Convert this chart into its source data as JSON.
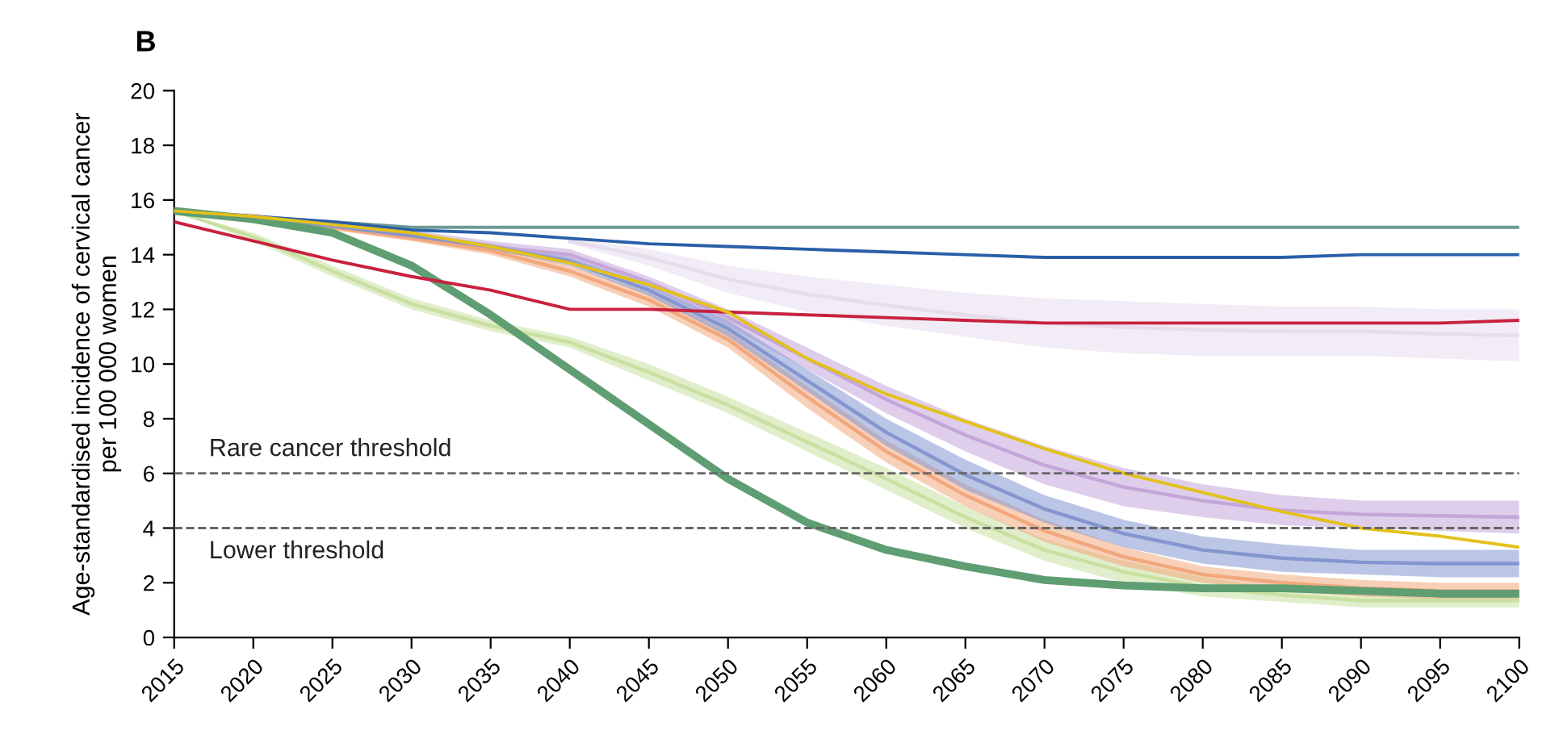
{
  "chart_data": {
    "type": "line",
    "title": "B",
    "ylabel": "Age-standardised incidence of cervical cancer\nper 100 000 women",
    "x": [
      2015,
      2020,
      2025,
      2030,
      2035,
      2040,
      2045,
      2050,
      2055,
      2060,
      2065,
      2070,
      2075,
      2080,
      2085,
      2090,
      2095,
      2100
    ],
    "xlim": [
      2015,
      2100
    ],
    "xticks": [
      2015,
      2020,
      2025,
      2030,
      2035,
      2040,
      2045,
      2050,
      2055,
      2060,
      2065,
      2070,
      2075,
      2080,
      2085,
      2090,
      2095,
      2100
    ],
    "ylim": [
      0,
      20
    ],
    "yticks": [
      0,
      2,
      4,
      6,
      8,
      10,
      12,
      14,
      16,
      18,
      20
    ],
    "grid": false,
    "legend": false,
    "line_style": "solid",
    "marker": "none",
    "series": [
      {
        "color": "#e6dcec",
        "values": [
          null,
          null,
          null,
          null,
          null,
          14.5,
          13.9,
          13.1,
          12.55,
          12.15,
          11.8,
          11.5,
          11.35,
          11.25,
          11.2,
          11.2,
          11.1,
          11.05
        ],
        "lower": [
          null,
          null,
          null,
          null,
          null,
          14.4,
          13.6,
          12.6,
          11.9,
          11.4,
          11.0,
          10.6,
          10.4,
          10.3,
          10.3,
          10.3,
          10.2,
          10.1
        ],
        "upper": [
          null,
          null,
          null,
          null,
          null,
          14.6,
          14.2,
          13.6,
          13.2,
          12.9,
          12.6,
          12.4,
          12.3,
          12.2,
          12.1,
          12.1,
          12.0,
          12.0
        ]
      },
      {
        "color": "#c9e0a0",
        "values": [
          15.6,
          14.65,
          13.4,
          12.2,
          11.4,
          10.8,
          9.7,
          8.5,
          7.15,
          5.8,
          4.4,
          3.2,
          2.4,
          1.85,
          1.55,
          1.35,
          1.35,
          1.35
        ],
        "lower": [
          15.6,
          14.5,
          13.2,
          12.0,
          11.2,
          10.6,
          9.4,
          8.2,
          6.8,
          5.4,
          4.0,
          2.8,
          2.0,
          1.5,
          1.3,
          1.1,
          1.1,
          1.1
        ],
        "upper": [
          15.6,
          14.8,
          13.6,
          12.4,
          11.6,
          11.0,
          10.0,
          8.8,
          7.5,
          6.2,
          4.8,
          3.6,
          2.8,
          2.2,
          1.8,
          1.6,
          1.6,
          1.6
        ]
      },
      {
        "color": "#f2a77c",
        "values": [
          15.6,
          15.35,
          15.0,
          14.6,
          14.15,
          13.4,
          12.35,
          10.9,
          8.8,
          6.8,
          5.2,
          3.9,
          2.95,
          2.3,
          2.0,
          1.8,
          1.7,
          1.7
        ],
        "lower": [
          15.6,
          15.3,
          14.9,
          14.5,
          14.0,
          13.2,
          12.1,
          10.6,
          8.4,
          6.4,
          4.8,
          3.5,
          2.6,
          2.0,
          1.7,
          1.5,
          1.4,
          1.4
        ],
        "upper": [
          15.6,
          15.4,
          15.1,
          14.7,
          14.3,
          13.6,
          12.6,
          11.2,
          9.2,
          7.2,
          5.6,
          4.3,
          3.3,
          2.6,
          2.3,
          2.1,
          2.0,
          2.0
        ]
      },
      {
        "color": "#c4a6da",
        "values": [
          15.6,
          15.4,
          15.1,
          14.75,
          14.3,
          14.0,
          13.0,
          11.7,
          10.2,
          8.7,
          7.4,
          6.3,
          5.5,
          5.0,
          4.65,
          4.5,
          4.45,
          4.4
        ],
        "lower": [
          15.6,
          15.3,
          15.0,
          14.6,
          14.1,
          13.8,
          12.8,
          11.4,
          9.8,
          8.2,
          6.8,
          5.6,
          4.8,
          4.4,
          4.1,
          4.0,
          3.9,
          3.8
        ],
        "upper": [
          15.6,
          15.5,
          15.2,
          14.9,
          14.5,
          14.2,
          13.2,
          12.0,
          10.6,
          9.2,
          8.0,
          7.0,
          6.2,
          5.6,
          5.2,
          5.0,
          5.0,
          5.0
        ]
      },
      {
        "color": "#8495cf",
        "values": [
          15.6,
          15.35,
          15.05,
          14.7,
          14.3,
          13.75,
          12.7,
          11.3,
          9.4,
          7.5,
          5.95,
          4.7,
          3.8,
          3.2,
          2.9,
          2.75,
          2.7,
          2.7
        ],
        "lower": [
          15.6,
          15.3,
          15.0,
          14.6,
          14.2,
          13.6,
          12.5,
          11.0,
          9.0,
          7.0,
          5.4,
          4.2,
          3.3,
          2.7,
          2.4,
          2.3,
          2.2,
          2.2
        ],
        "upper": [
          15.6,
          15.4,
          15.1,
          14.8,
          14.4,
          13.9,
          12.9,
          11.6,
          9.8,
          8.0,
          6.5,
          5.2,
          4.3,
          3.7,
          3.4,
          3.2,
          3.2,
          3.2
        ]
      },
      {
        "color": "#5e9e72",
        "values": [
          15.6,
          15.3,
          14.8,
          13.6,
          11.8,
          9.8,
          7.8,
          5.8,
          4.2,
          3.2,
          2.6,
          2.1,
          1.9,
          1.8,
          1.8,
          1.7,
          1.6,
          1.6
        ]
      },
      {
        "color": "#6b9a94",
        "values": [
          15.6,
          15.4,
          15.2,
          15.0,
          15.0,
          15.0,
          15.0,
          15.0,
          15.0,
          15.0,
          15.0,
          15.0,
          15.0,
          15.0,
          15.0,
          15.0,
          15.0,
          15.0
        ]
      },
      {
        "color": "#2a5fa8",
        "values": [
          15.6,
          15.4,
          15.2,
          14.9,
          14.8,
          14.6,
          14.4,
          14.3,
          14.2,
          14.1,
          14.0,
          13.9,
          13.9,
          13.9,
          13.9,
          14.0,
          14.0,
          14.0
        ]
      },
      {
        "color": "#c8213f",
        "values": [
          15.2,
          14.5,
          13.8,
          13.2,
          12.7,
          12.0,
          12.0,
          11.9,
          11.8,
          11.7,
          11.6,
          11.5,
          11.5,
          11.5,
          11.5,
          11.5,
          11.5,
          11.6
        ]
      },
      {
        "color": "#e3c11a",
        "values": [
          15.6,
          15.4,
          15.1,
          14.8,
          14.3,
          13.7,
          12.9,
          11.9,
          10.2,
          8.9,
          7.9,
          6.9,
          6.0,
          5.3,
          4.6,
          4.0,
          3.7,
          3.3
        ]
      }
    ],
    "ref_lines": [
      {
        "axis": "y",
        "value": 6,
        "label": "Rare cancer threshold",
        "color": "#666666",
        "line_style": "dashed"
      },
      {
        "axis": "y",
        "value": 4,
        "label": "Lower threshold",
        "color": "#666666",
        "line_style": "dashed"
      }
    ]
  }
}
